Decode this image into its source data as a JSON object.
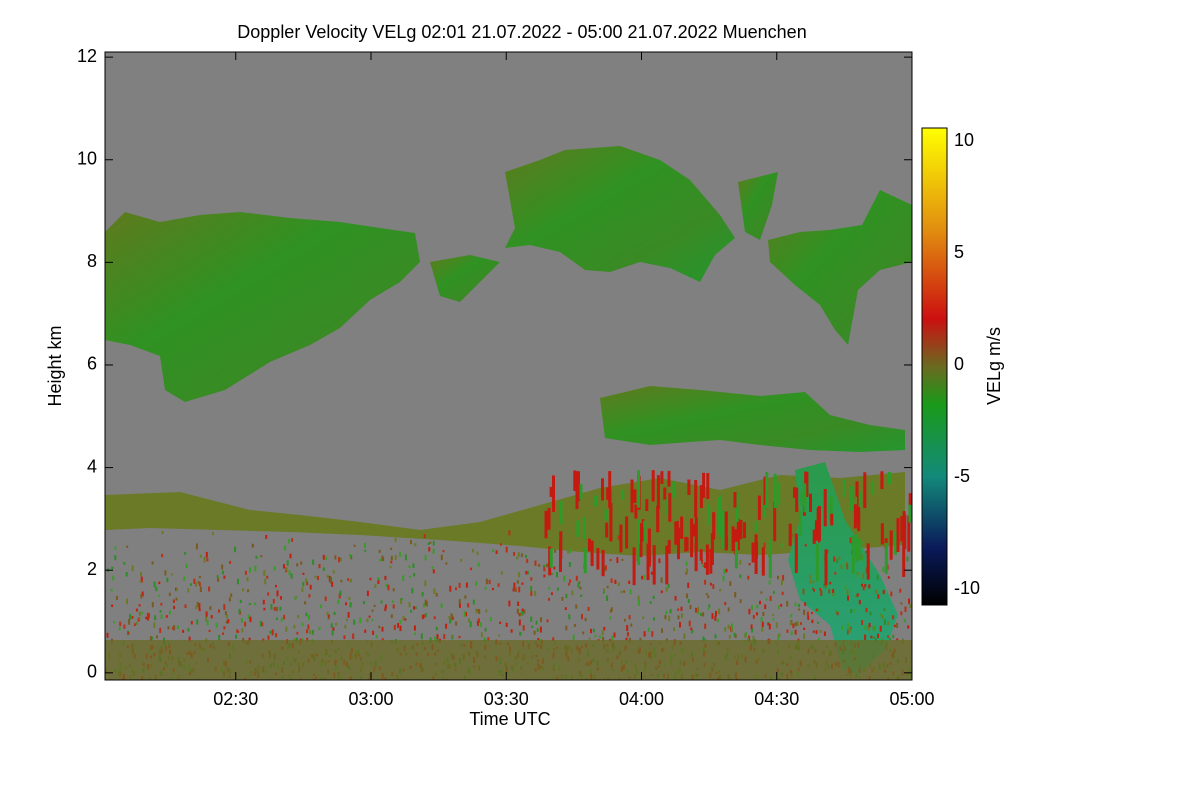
{
  "chart_data": {
    "type": "heatmap",
    "title": "Doppler Velocity VELg   02:01 21.07.2022 - 05:00 21.07.2022 Muenchen",
    "x_label": "Time UTC",
    "y_label": "Height km",
    "colorbar_label": "VELg m/s",
    "xlim": [
      "02:01",
      "05:00"
    ],
    "xticks": [
      "02:30",
      "03:00",
      "03:30",
      "04:00",
      "04:30",
      "05:00"
    ],
    "ylim": [
      -0.14,
      12.1
    ],
    "yticks": [
      0,
      2,
      4,
      6,
      8,
      10,
      12
    ],
    "clim": [
      -10.7,
      10.6
    ],
    "cticks": [
      10,
      5,
      0,
      -5,
      -10
    ]
  }
}
